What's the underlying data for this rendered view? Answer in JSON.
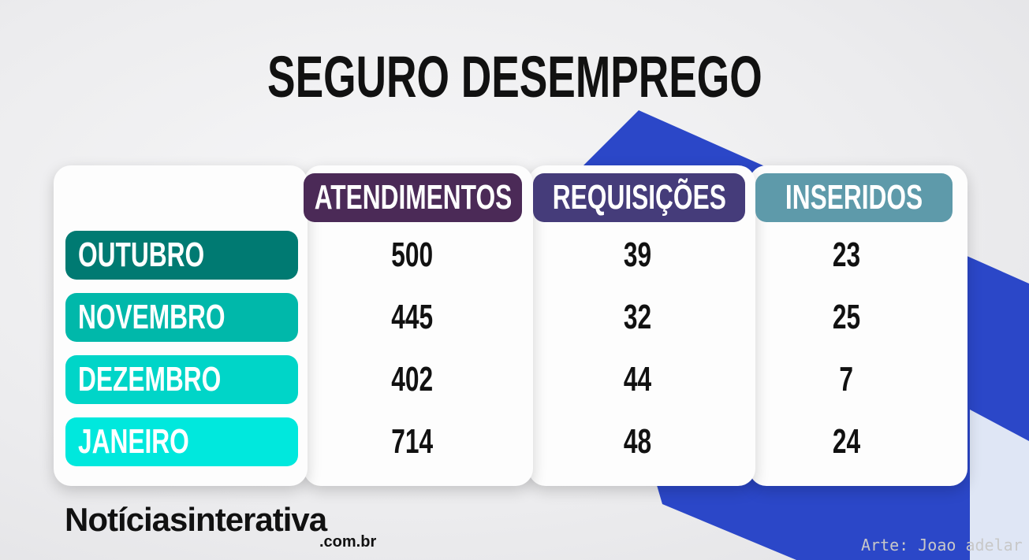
{
  "title": "SEGURO DESEMPREGO",
  "table": {
    "columns": [
      "ATENDIMENTOS",
      "REQUISIÇÕES",
      "INSERIDOS"
    ],
    "rows": [
      {
        "label": "OUTUBRO",
        "values": [
          500,
          39,
          23
        ]
      },
      {
        "label": "NOVEMBRO",
        "values": [
          445,
          32,
          25
        ]
      },
      {
        "label": "DEZEMBRO",
        "values": [
          402,
          44,
          7
        ]
      },
      {
        "label": "JANEIRO",
        "values": [
          714,
          48,
          24
        ]
      }
    ]
  },
  "logo": {
    "name": "Notícias",
    "name2": "interativa",
    "domain": ".com.br"
  },
  "credit": "Arte: Joao adelar"
}
